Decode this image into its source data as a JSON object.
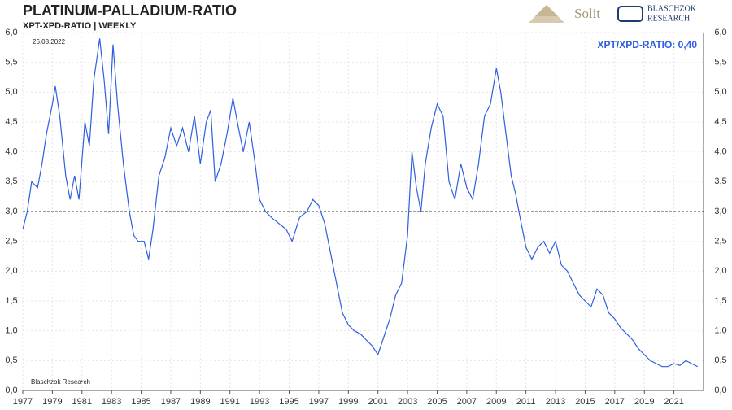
{
  "chart_data": {
    "type": "line",
    "title": "PLATINUM-PALLADIUM-RATIO",
    "subtitle": "XPT-XPD-RATIO | WEEKLY",
    "date": "26.08.2022",
    "annotation": "XPT/XPD-RATIO: 0,40",
    "source": "Blaschzok Research",
    "color": "#2f5fe0",
    "grid": true,
    "reference_line": 3,
    "xlim": [
      1977,
      2023
    ],
    "xticks": [
      1977,
      1979,
      1981,
      1983,
      1985,
      1987,
      1989,
      1991,
      1993,
      1995,
      1997,
      1999,
      2001,
      2003,
      2005,
      2007,
      2009,
      2011,
      2013,
      2015,
      2017,
      2019,
      2021
    ],
    "ylim": [
      0,
      6
    ],
    "yticks": [
      {
        "value": 0,
        "label": "0,0"
      },
      {
        "value": 0.5,
        "label": "0,5"
      },
      {
        "value": 1,
        "label": "1,0"
      },
      {
        "value": 1.5,
        "label": "1,5"
      },
      {
        "value": 2,
        "label": "2,0"
      },
      {
        "value": 2.5,
        "label": "2,5"
      },
      {
        "value": 3,
        "label": "3,0"
      },
      {
        "value": 3.5,
        "label": "3,5"
      },
      {
        "value": 4,
        "label": "4,0"
      },
      {
        "value": 4.5,
        "label": "4,5"
      },
      {
        "value": 5,
        "label": "5,0"
      },
      {
        "value": 5.5,
        "label": "5,5"
      },
      {
        "value": 6,
        "label": "6,0"
      }
    ],
    "x": [
      1977.0,
      1977.3,
      1977.6,
      1978.0,
      1978.3,
      1978.6,
      1979.0,
      1979.2,
      1979.5,
      1979.9,
      1980.2,
      1980.5,
      1980.8,
      1981.2,
      1981.5,
      1981.8,
      1982.2,
      1982.5,
      1982.8,
      1983.1,
      1983.4,
      1983.8,
      1984.2,
      1984.5,
      1984.8,
      1985.2,
      1985.5,
      1985.8,
      1986.2,
      1986.6,
      1987.0,
      1987.4,
      1987.8,
      1988.2,
      1988.6,
      1989.0,
      1989.4,
      1989.7,
      1990.0,
      1990.4,
      1990.8,
      1991.2,
      1991.5,
      1991.9,
      1992.3,
      1992.7,
      1993.0,
      1993.4,
      1993.8,
      1994.3,
      1994.8,
      1995.2,
      1995.7,
      1996.2,
      1996.6,
      1997.0,
      1997.4,
      1997.8,
      1998.2,
      1998.6,
      1999.0,
      1999.4,
      1999.8,
      2000.2,
      2000.6,
      2001.0,
      2001.4,
      2001.8,
      2002.2,
      2002.6,
      2003.0,
      2003.3,
      2003.6,
      2003.9,
      2004.2,
      2004.6,
      2005.0,
      2005.4,
      2005.8,
      2006.2,
      2006.6,
      2007.0,
      2007.4,
      2007.8,
      2008.2,
      2008.6,
      2009.0,
      2009.3,
      2009.7,
      2010.0,
      2010.3,
      2010.6,
      2011.0,
      2011.4,
      2011.8,
      2012.2,
      2012.6,
      2013.0,
      2013.4,
      2013.8,
      2014.2,
      2014.6,
      2015.0,
      2015.4,
      2015.8,
      2016.2,
      2016.6,
      2017.0,
      2017.4,
      2017.8,
      2018.2,
      2018.6,
      2019.0,
      2019.4,
      2019.8,
      2020.2,
      2020.6,
      2021.0,
      2021.4,
      2021.8,
      2022.2,
      2022.6
    ],
    "values": [
      2.7,
      3.0,
      3.5,
      3.4,
      3.8,
      4.3,
      4.8,
      5.1,
      4.6,
      3.6,
      3.2,
      3.6,
      3.2,
      4.5,
      4.1,
      5.2,
      5.9,
      5.2,
      4.3,
      5.8,
      4.8,
      3.8,
      3.0,
      2.6,
      2.5,
      2.5,
      2.2,
      2.7,
      3.6,
      3.9,
      4.4,
      4.1,
      4.4,
      4.0,
      4.6,
      3.8,
      4.5,
      4.7,
      3.5,
      3.8,
      4.3,
      4.9,
      4.5,
      4.0,
      4.5,
      3.8,
      3.2,
      3.0,
      2.9,
      2.8,
      2.7,
      2.5,
      2.9,
      3.0,
      3.2,
      3.1,
      2.8,
      2.3,
      1.8,
      1.3,
      1.1,
      1.0,
      0.95,
      0.85,
      0.75,
      0.6,
      0.9,
      1.2,
      1.6,
      1.8,
      2.6,
      4.0,
      3.4,
      3.0,
      3.8,
      4.4,
      4.8,
      4.6,
      3.5,
      3.2,
      3.8,
      3.4,
      3.2,
      3.8,
      4.6,
      4.8,
      5.4,
      5.0,
      4.2,
      3.6,
      3.3,
      2.9,
      2.4,
      2.2,
      2.4,
      2.5,
      2.3,
      2.5,
      2.1,
      2.0,
      1.8,
      1.6,
      1.5,
      1.4,
      1.7,
      1.6,
      1.3,
      1.2,
      1.05,
      0.95,
      0.85,
      0.7,
      0.6,
      0.5,
      0.45,
      0.4,
      0.4,
      0.45,
      0.42,
      0.5,
      0.45,
      0.4
    ]
  },
  "branding": {
    "solit": "Solit",
    "line1": "BLASCHZOK",
    "line2": "RESEARCH"
  }
}
